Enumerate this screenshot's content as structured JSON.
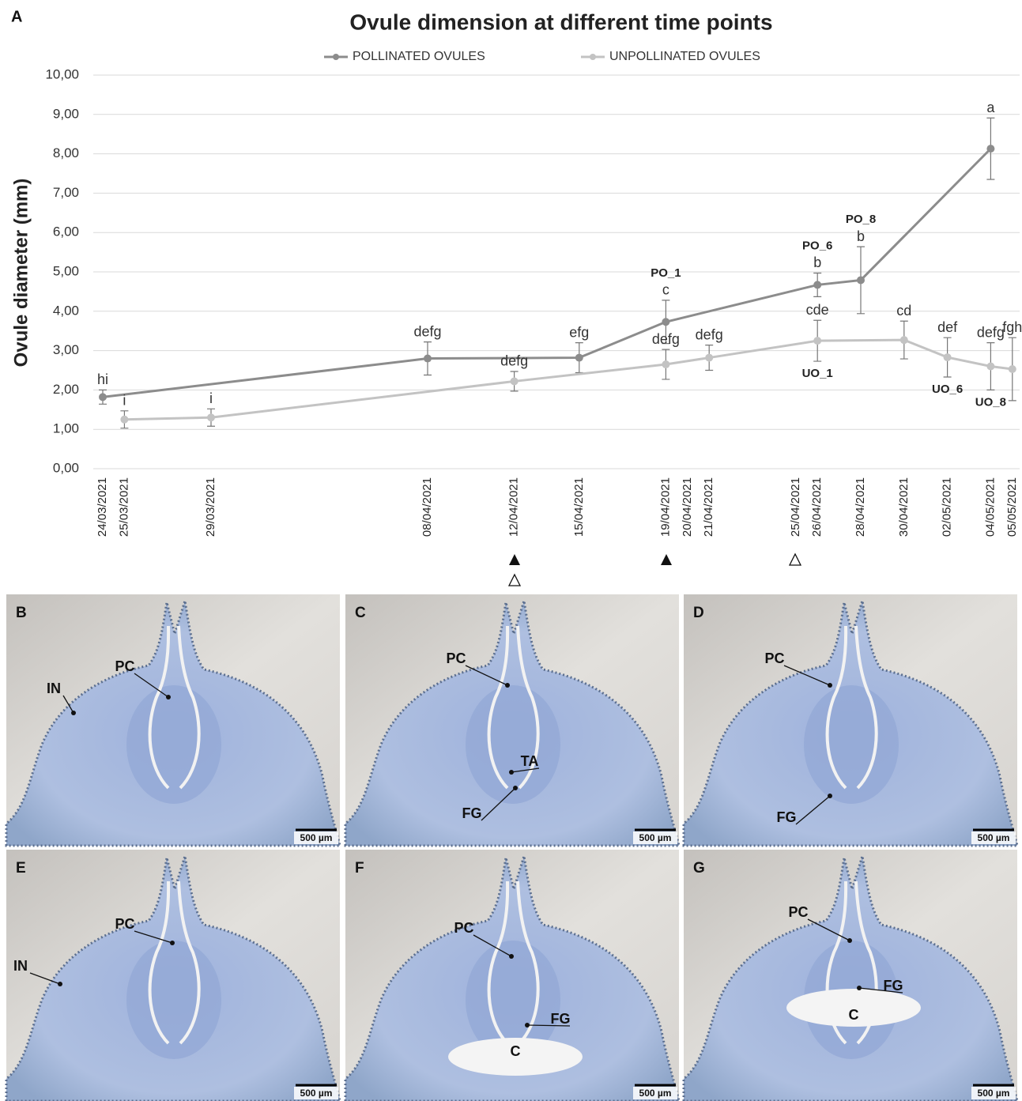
{
  "chart_data": {
    "type": "line",
    "panel": "A",
    "title": "Ovule dimension at different time points",
    "y_label": "Ovule diameter (mm)",
    "ylim": [
      0,
      10
    ],
    "yticks": [
      {
        "value": 0,
        "label": "0,00"
      },
      {
        "value": 1,
        "label": "1,00"
      },
      {
        "value": 2,
        "label": "2,00"
      },
      {
        "value": 3,
        "label": "3,00"
      },
      {
        "value": 4,
        "label": "4,00"
      },
      {
        "value": 5,
        "label": "5,00"
      },
      {
        "value": 6,
        "label": "6,00"
      },
      {
        "value": 7,
        "label": "7,00"
      },
      {
        "value": 8,
        "label": "8,00"
      },
      {
        "value": 9,
        "label": "9,00"
      },
      {
        "value": 10,
        "label": "10,00"
      }
    ],
    "xticks": [
      "24/03/2021",
      "25/03/2021",
      "29/03/2021",
      "08/04/2021",
      "12/04/2021",
      "15/04/2021",
      "19/04/2021",
      "20/04/2021",
      "21/04/2021",
      "25/04/2021",
      "26/04/2021",
      "28/04/2021",
      "30/04/2021",
      "02/05/2021",
      "04/05/2021",
      "05/05/2021"
    ],
    "grid": true,
    "legend": "top",
    "series": [
      {
        "name": "POLLINATED OVULES",
        "color": "#8c8c8c",
        "x": [
          "24/03/2021",
          "08/04/2021",
          "15/04/2021",
          "19/04/2021",
          "26/04/2021",
          "28/04/2021",
          "04/05/2021"
        ],
        "values": [
          1.82,
          2.8,
          2.82,
          3.73,
          4.67,
          4.79,
          8.13
        ],
        "errors": [
          0.18,
          0.42,
          0.38,
          0.55,
          0.3,
          0.85,
          0.78
        ],
        "letters": [
          "hi",
          "defg",
          "efg",
          "c",
          "b",
          "b",
          "a"
        ],
        "tags": [
          null,
          null,
          null,
          "PO_1",
          "PO_6",
          "PO_8",
          null
        ]
      },
      {
        "name": "UNPOLLINATED OVULES",
        "color": "#c3c3c3",
        "x": [
          "25/03/2021",
          "29/03/2021",
          "12/04/2021",
          "19/04/2021",
          "21/04/2021",
          "26/04/2021",
          "30/04/2021",
          "02/05/2021",
          "04/05/2021",
          "05/05/2021"
        ],
        "values": [
          1.25,
          1.3,
          2.22,
          2.65,
          2.82,
          3.25,
          3.27,
          2.83,
          2.6,
          2.53
        ],
        "errors": [
          0.22,
          0.22,
          0.25,
          0.38,
          0.32,
          0.52,
          0.48,
          0.5,
          0.6,
          0.8
        ],
        "letters": [
          "i",
          "i",
          "defg",
          "defg",
          "defg",
          "cde",
          "cd",
          "def",
          "defg",
          "fgh"
        ],
        "tags": [
          null,
          null,
          null,
          null,
          null,
          "UO_1",
          null,
          "UO_6",
          "UO_8",
          null
        ]
      }
    ]
  },
  "panels": [
    {
      "letter": "B",
      "labels": [
        "PC",
        "IN"
      ],
      "scale_bar": "500 µm"
    },
    {
      "letter": "C",
      "labels": [
        "PC",
        "TA",
        "FG"
      ],
      "scale_bar": "500 µm"
    },
    {
      "letter": "D",
      "labels": [
        "PC",
        "FG"
      ],
      "scale_bar": "500 µm"
    },
    {
      "letter": "E",
      "labels": [
        "PC",
        "IN"
      ],
      "scale_bar": "500 µm"
    },
    {
      "letter": "F",
      "labels": [
        "PC",
        "FG",
        "C"
      ],
      "scale_bar": "500 µm"
    },
    {
      "letter": "G",
      "labels": [
        "PC",
        "FG",
        "C"
      ],
      "scale_bar": "500 µm"
    }
  ]
}
